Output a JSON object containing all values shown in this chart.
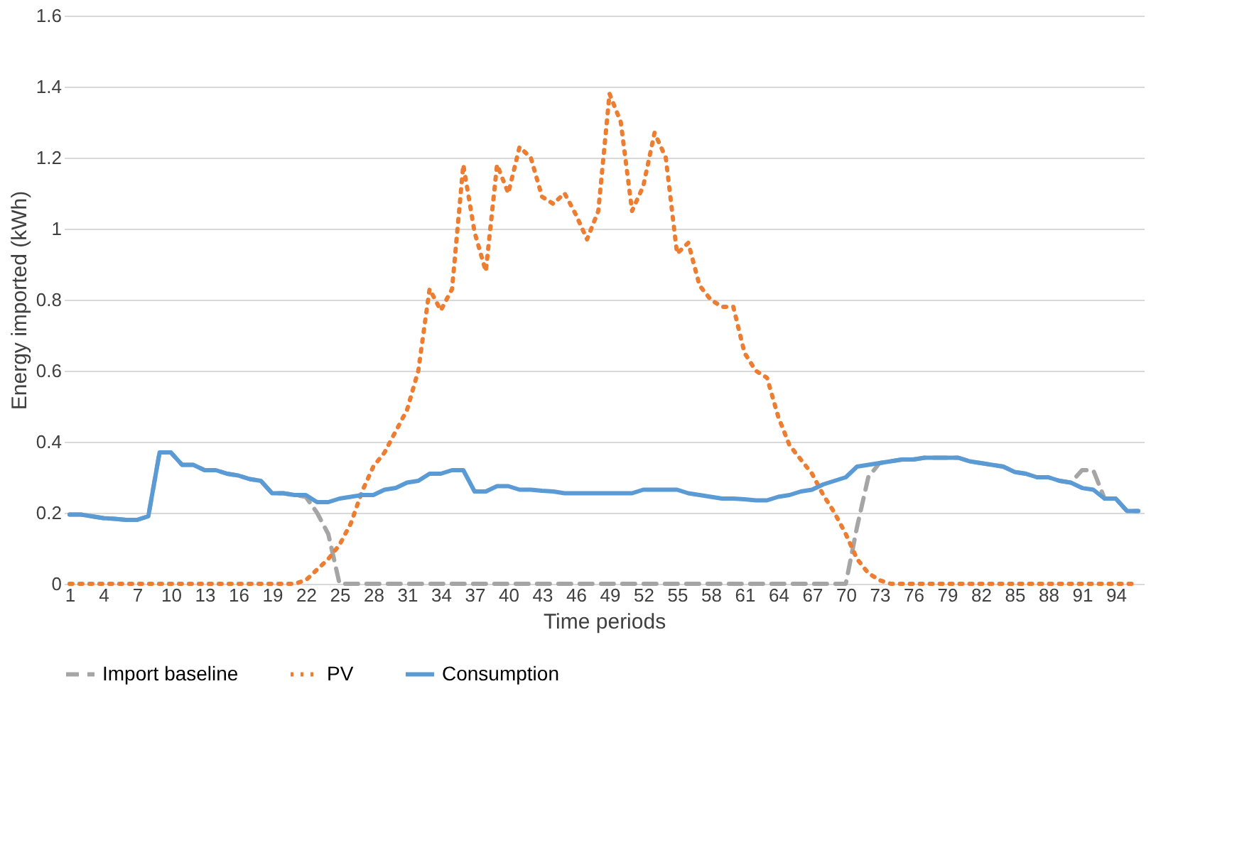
{
  "chart_data": {
    "type": "line",
    "xlabel": "Time periods",
    "ylabel": "Energy imported (kWh)",
    "categories": [
      "1",
      null,
      null,
      "4",
      null,
      null,
      "7",
      null,
      null,
      "10",
      null,
      null,
      "13",
      null,
      null,
      "16",
      null,
      null,
      "19",
      null,
      null,
      "22",
      null,
      null,
      "25",
      null,
      null,
      "28",
      null,
      null,
      "31",
      null,
      null,
      "34",
      null,
      null,
      "37",
      null,
      null,
      "40",
      null,
      null,
      "43",
      null,
      null,
      "46",
      null,
      null,
      "49",
      null,
      null,
      "52",
      null,
      null,
      "55",
      null,
      null,
      "58",
      null,
      null,
      "61",
      null,
      null,
      "64",
      null,
      null,
      "67",
      null,
      null,
      "70",
      null,
      null,
      "73",
      null,
      null,
      "76",
      null,
      null,
      "79",
      null,
      null,
      "82",
      null,
      null,
      "85",
      null,
      null,
      "88",
      null,
      null,
      "91",
      null,
      null,
      "94",
      null,
      null
    ],
    "series": [
      {
        "name": "Import baseline",
        "color": "#a5a5a5",
        "line_style": "dashed",
        "values": [
          0.195,
          0.195,
          0.19,
          0.185,
          0.183,
          0.18,
          0.18,
          0.19,
          0.37,
          0.37,
          0.335,
          0.335,
          0.32,
          0.32,
          0.31,
          0.305,
          0.295,
          0.29,
          0.255,
          0.255,
          0.25,
          0.245,
          0.2,
          0.14,
          0,
          0,
          0,
          0,
          0,
          0,
          0,
          0,
          0,
          0,
          0,
          0,
          0,
          0,
          0,
          0,
          0,
          0,
          0,
          0,
          0,
          0,
          0,
          0,
          0,
          0,
          0,
          0,
          0,
          0,
          0,
          0,
          0,
          0,
          0,
          0,
          0,
          0,
          0,
          0,
          0,
          0,
          0,
          0,
          0,
          0,
          0.16,
          0.3,
          0.34,
          0.345,
          0.35,
          0.35,
          0.355,
          0.355,
          0.355,
          0.355,
          0.345,
          0.34,
          0.335,
          0.33,
          0.315,
          0.31,
          0.3,
          0.3,
          0.29,
          0.285,
          0.32,
          0.32,
          0.24,
          0.24,
          0.205,
          0.205
        ]
      },
      {
        "name": "PV",
        "color": "#ed7d31",
        "line_style": "dotted",
        "values": [
          0,
          0,
          0,
          0,
          0,
          0,
          0,
          0,
          0,
          0,
          0,
          0,
          0,
          0,
          0,
          0,
          0,
          0,
          0,
          0,
          0,
          0.01,
          0.04,
          0.07,
          0.11,
          0.17,
          0.26,
          0.33,
          0.37,
          0.43,
          0.49,
          0.6,
          0.83,
          0.77,
          0.83,
          1.18,
          0.99,
          0.88,
          1.18,
          1.1,
          1.23,
          1.2,
          1.09,
          1.07,
          1.1,
          1.04,
          0.97,
          1.05,
          1.38,
          1.3,
          1.05,
          1.12,
          1.27,
          1.2,
          0.93,
          0.96,
          0.84,
          0.8,
          0.78,
          0.78,
          0.65,
          0.6,
          0.58,
          0.47,
          0.39,
          0.35,
          0.31,
          0.25,
          0.2,
          0.14,
          0.07,
          0.03,
          0.01,
          0,
          0,
          0,
          0,
          0,
          0,
          0,
          0,
          0,
          0,
          0,
          0,
          0,
          0,
          0,
          0,
          0,
          0,
          0,
          0,
          0,
          0,
          0
        ]
      },
      {
        "name": "Consumption",
        "color": "#5b9bd5",
        "line_style": "solid",
        "values": [
          0.195,
          0.195,
          0.19,
          0.185,
          0.183,
          0.18,
          0.18,
          0.19,
          0.37,
          0.37,
          0.335,
          0.335,
          0.32,
          0.32,
          0.31,
          0.305,
          0.295,
          0.29,
          0.255,
          0.255,
          0.25,
          0.25,
          0.23,
          0.23,
          0.24,
          0.245,
          0.25,
          0.25,
          0.265,
          0.27,
          0.285,
          0.29,
          0.31,
          0.31,
          0.32,
          0.32,
          0.26,
          0.26,
          0.275,
          0.275,
          0.265,
          0.265,
          0.262,
          0.26,
          0.255,
          0.255,
          0.255,
          0.255,
          0.255,
          0.255,
          0.255,
          0.265,
          0.265,
          0.265,
          0.265,
          0.255,
          0.25,
          0.245,
          0.24,
          0.24,
          0.238,
          0.235,
          0.235,
          0.245,
          0.25,
          0.26,
          0.265,
          0.28,
          0.29,
          0.3,
          0.33,
          0.335,
          0.34,
          0.345,
          0.35,
          0.35,
          0.355,
          0.355,
          0.355,
          0.355,
          0.345,
          0.34,
          0.335,
          0.33,
          0.315,
          0.31,
          0.3,
          0.3,
          0.29,
          0.285,
          0.27,
          0.265,
          0.24,
          0.24,
          0.205,
          0.205
        ]
      }
    ],
    "ylim": [
      0,
      1.6
    ],
    "yticks": [
      0,
      0.2,
      0.4,
      0.6,
      0.8,
      1,
      1.2,
      1.4,
      1.6
    ],
    "grid": "y",
    "legend": "bottom"
  }
}
